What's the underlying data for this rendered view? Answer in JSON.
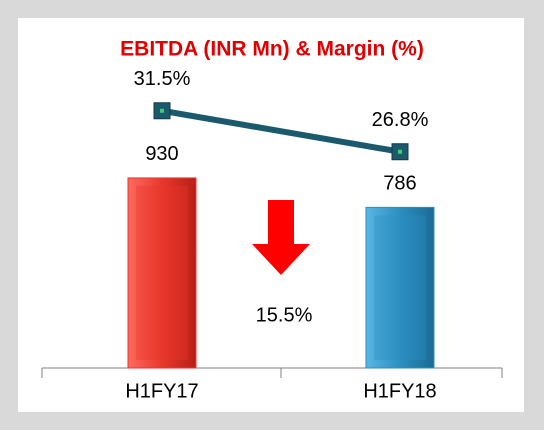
{
  "chart_data": {
    "type": "bar",
    "title": "EBITDA (INR Mn) & Margin (%)",
    "categories": [
      "H1FY17",
      "H1FY18"
    ],
    "series": [
      {
        "type": "bar",
        "colors": [
          "#e8372c",
          "#2b8fc1"
        ],
        "values": [
          930,
          786
        ]
      },
      {
        "type": "line",
        "axis": "y2",
        "color": "#1b5a6c",
        "values": [
          31.5,
          26.8
        ],
        "value_labels": [
          "31.5%",
          "26.8%"
        ]
      }
    ],
    "ylim": [
      0,
      1600
    ],
    "y2lim": [
      2,
      39.5
    ],
    "annotation": {
      "text": "15.5%",
      "color": "#ff0000"
    }
  }
}
